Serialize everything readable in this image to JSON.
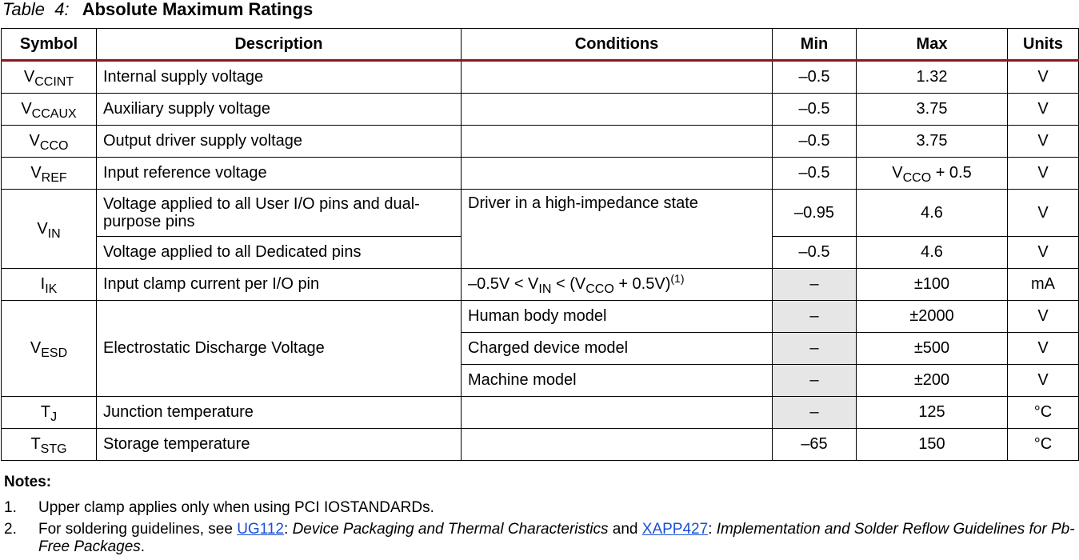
{
  "caption": {
    "label": "Table",
    "number": "4:",
    "title": "Absolute Maximum Ratings"
  },
  "headers": {
    "symbol": "Symbol",
    "description": "Description",
    "conditions": "Conditions",
    "min": "Min",
    "max": "Max",
    "units": "Units"
  },
  "rows": {
    "vccint": {
      "sym": "V",
      "sub": "CCINT",
      "desc": "Internal supply voltage",
      "min": "–0.5",
      "max": "1.32",
      "units": "V"
    },
    "vccaux": {
      "sym": "V",
      "sub": "CCAUX",
      "desc": "Auxiliary supply voltage",
      "min": "–0.5",
      "max": "3.75",
      "units": "V"
    },
    "vcco": {
      "sym": "V",
      "sub": "CCO",
      "desc": "Output driver supply voltage",
      "min": "–0.5",
      "max": "3.75",
      "units": "V"
    },
    "vref": {
      "sym": "V",
      "sub": "REF",
      "desc": "Input reference voltage",
      "min": "–0.5",
      "max_sym": "V",
      "max_sub": "CCO",
      "max_rest": " + 0.5",
      "units": "V"
    },
    "vin": {
      "sym": "V",
      "sub": "IN",
      "cond": "Driver in a high-impedance state",
      "a": {
        "desc": "Voltage applied to all User I/O pins and dual-purpose pins",
        "min": "–0.95",
        "max": "4.6",
        "units": "V"
      },
      "b": {
        "desc": "Voltage applied to all Dedicated pins",
        "min": "–0.5",
        "max": "4.6",
        "units": "V"
      }
    },
    "iik": {
      "sym": "I",
      "sub": "IK",
      "desc": "Input clamp current per I/O pin",
      "cond_p1": "–0.5V < V",
      "cond_sub1": "IN",
      "cond_p2": " < (V",
      "cond_sub2": "CCO",
      "cond_p3": " + 0.5V)",
      "cond_note": "(1)",
      "min": "–",
      "max": "±100",
      "units": "mA"
    },
    "vesd": {
      "sym": "V",
      "sub": "ESD",
      "desc": "Electrostatic Discharge Voltage",
      "a": {
        "cond": "Human body model",
        "min": "–",
        "max": "±2000",
        "units": "V"
      },
      "b": {
        "cond": "Charged device model",
        "min": "–",
        "max": "±500",
        "units": "V"
      },
      "c": {
        "cond": "Machine model",
        "min": "–",
        "max": "±200",
        "units": "V"
      }
    },
    "tj": {
      "sym": "T",
      "sub": "J",
      "desc": "Junction temperature",
      "min": "–",
      "max": "125",
      "units": "°C"
    },
    "tstg": {
      "sym": "T",
      "sub": "STG",
      "desc": "Storage temperature",
      "min": "–65",
      "max": "150",
      "units": "°C"
    }
  },
  "notes": {
    "heading": "Notes:",
    "n1": {
      "num": "1.",
      "text": "Upper clamp applies only when using PCI IOSTANDARDs."
    },
    "n2": {
      "num": "2.",
      "pre": "For soldering guidelines, see ",
      "link1": "UG112",
      "sep1": ": ",
      "it1": "Device Packaging and Thermal Characteristics",
      "mid": " and ",
      "link2": "XAPP427",
      "sep2": ": ",
      "it2": "Implementation and Solder Reflow Guidelines for Pb-Free Packages",
      "end": "."
    }
  }
}
